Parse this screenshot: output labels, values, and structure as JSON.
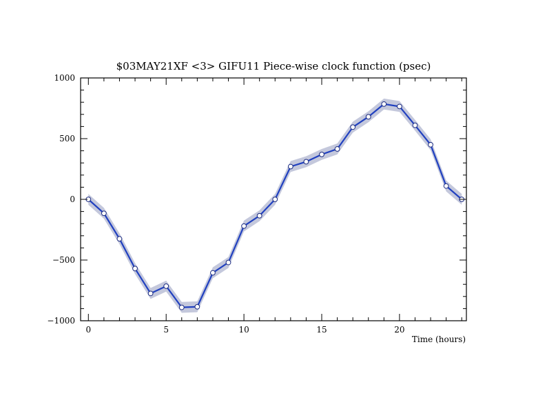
{
  "chart_data": {
    "type": "line",
    "title": "$03MAY21XF <3>  GIFU11     Piece-wise clock function (psec)",
    "xlabel": "Time (hours)",
    "ylabel": "",
    "xlim": [
      -0.5,
      24.3
    ],
    "ylim": [
      -1000,
      1000
    ],
    "x_ticks": [
      0,
      5,
      10,
      15,
      20
    ],
    "x_tick_labels": [
      "0",
      "5",
      "10",
      "15",
      "20"
    ],
    "y_ticks": [
      -1000,
      -500,
      0,
      500,
      1000
    ],
    "y_tick_labels": [
      "−1000",
      "−500",
      "0",
      "500",
      "1000"
    ],
    "grid": false,
    "colors": {
      "line": "#2040c0",
      "band": "#c4c8dc",
      "marker_fill": "#ffffff"
    },
    "series": [
      {
        "x": [
          0,
          1,
          2,
          3,
          4,
          5,
          6,
          7,
          8,
          9,
          10,
          11,
          12,
          13,
          14,
          15,
          16,
          17,
          18,
          19,
          20,
          21,
          22,
          23,
          24
        ],
        "y": [
          0,
          -115,
          -325,
          -570,
          -775,
          -715,
          -890,
          -885,
          -605,
          -520,
          -220,
          -135,
          0,
          270,
          310,
          370,
          415,
          595,
          680,
          785,
          765,
          610,
          450,
          110,
          0
        ],
        "uncertainty": 45
      }
    ]
  }
}
